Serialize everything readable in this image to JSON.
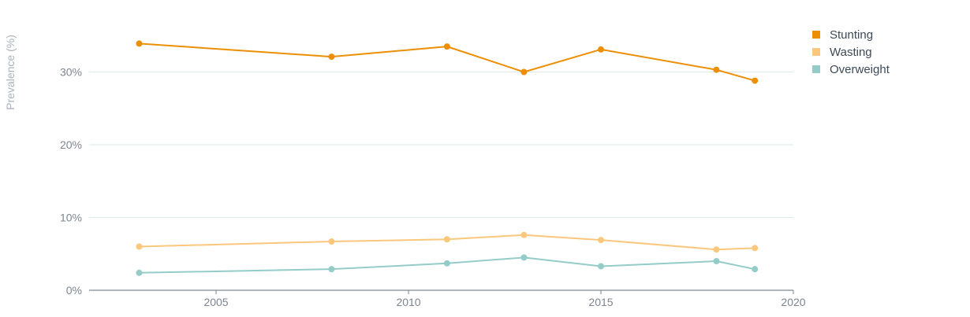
{
  "chart_data": {
    "type": "line",
    "ylabel": "Prevalence (%)",
    "xlabel": "",
    "xlim": [
      2001.7,
      2020
    ],
    "ylim": [
      0,
      36
    ],
    "x_ticks": [
      2005,
      2010,
      2015,
      2020
    ],
    "y_ticks": [
      0,
      10,
      20,
      30
    ],
    "y_tick_suffix": "%",
    "grid": true,
    "legend_position": "top-right",
    "series": [
      {
        "name": "Stunting",
        "color": "#ec8f04",
        "x": [
          2003,
          2008,
          2011,
          2013,
          2015,
          2018,
          2019
        ],
        "values": [
          33.9,
          32.1,
          33.5,
          30.0,
          33.1,
          30.3,
          28.8
        ]
      },
      {
        "name": "Wasting",
        "color": "#fbc77c",
        "x": [
          2003,
          2008,
          2011,
          2013,
          2015,
          2018,
          2019
        ],
        "values": [
          6.0,
          6.7,
          7.0,
          7.6,
          6.9,
          5.6,
          5.8
        ]
      },
      {
        "name": "Overweight",
        "color": "#93ccc8",
        "x": [
          2003,
          2008,
          2011,
          2013,
          2015,
          2018,
          2019
        ],
        "values": [
          2.4,
          2.9,
          3.7,
          4.5,
          3.3,
          4.0,
          2.9
        ]
      }
    ]
  }
}
